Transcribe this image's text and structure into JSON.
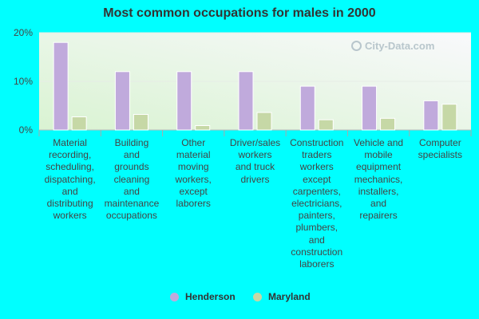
{
  "chart_data": {
    "type": "bar",
    "title": "Most common occupations for males in 2000",
    "categories": [
      "Material recording, scheduling, dispatching, and distributing workers",
      "Building and grounds cleaning and maintenance occupations",
      "Other material moving workers, except laborers",
      "Driver/sales workers and truck drivers",
      "Construction traders workers except carpenters, electricians, painters, plumbers, and construction laborers",
      "Vehicle and mobile equipment mechanics, installers, and repairers",
      "Computer specialists"
    ],
    "category_lines": [
      [
        "Material",
        "recording,",
        "scheduling,",
        "dispatching,",
        "and",
        "distributing",
        "workers"
      ],
      [
        "Building",
        "and",
        "grounds",
        "cleaning",
        "and",
        "maintenance",
        "occupations"
      ],
      [
        "Other",
        "material",
        "moving",
        "workers,",
        "except",
        "laborers"
      ],
      [
        "Driver/sales",
        "workers",
        "and truck",
        "drivers"
      ],
      [
        "Construction",
        "traders",
        "workers",
        "except",
        "carpenters,",
        "electricians,",
        "painters,",
        "plumbers,",
        "and",
        "construction",
        "laborers"
      ],
      [
        "Vehicle and",
        "mobile",
        "equipment",
        "mechanics,",
        "installers,",
        "and",
        "repairers"
      ],
      [
        "Computer",
        "specialists"
      ]
    ],
    "series": [
      {
        "name": "Henderson",
        "color": "#c0aadc",
        "values": [
          18.0,
          12.0,
          12.0,
          12.0,
          9.0,
          9.0,
          6.0
        ]
      },
      {
        "name": "Maryland",
        "color": "#c6d8a6",
        "values": [
          2.7,
          3.2,
          0.9,
          3.6,
          2.1,
          2.4,
          5.3
        ]
      }
    ],
    "ylim": [
      0,
      20
    ],
    "yticks": [
      0,
      10,
      20
    ],
    "ytick_labels": [
      "0%",
      "10%",
      "20%"
    ],
    "grid": true,
    "legend_position": "bottom-center"
  },
  "watermark": "City-Data.com",
  "colors": {
    "background": "#00ffff",
    "plot_gradient_start": "#ddf5d8",
    "plot_gradient_end": "#f8fafc"
  }
}
